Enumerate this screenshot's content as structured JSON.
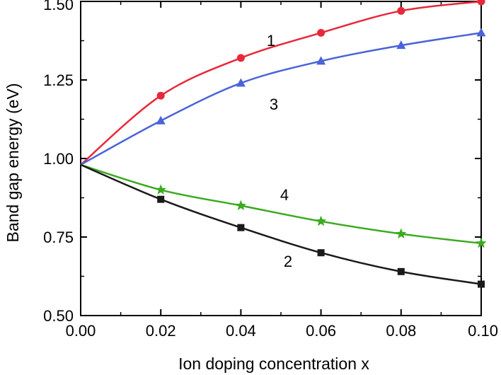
{
  "chart_data": {
    "type": "line",
    "xlabel": "Ion doping concentration x",
    "ylabel": "Band gap energy (eV)",
    "xlim": [
      0.0,
      0.1
    ],
    "ylim": [
      0.5,
      1.5
    ],
    "x_ticks": [
      "0.00",
      "0.02",
      "0.04",
      "0.06",
      "0.08",
      "0.10"
    ],
    "y_ticks": [
      "0.50",
      "0.75",
      "1.00",
      "1.25",
      "1.50"
    ],
    "x": [
      0.0,
      0.02,
      0.04,
      0.06,
      0.08,
      0.1
    ],
    "series": [
      {
        "label": "1",
        "color": "#e8283a",
        "marker": "circle",
        "values": [
          0.98,
          1.2,
          1.32,
          1.4,
          1.47,
          1.5
        ]
      },
      {
        "label": "3",
        "color": "#4a63d8",
        "marker": "triangle",
        "values": [
          0.98,
          1.12,
          1.24,
          1.31,
          1.36,
          1.4
        ]
      },
      {
        "label": "4",
        "color": "#3aaa1f",
        "marker": "star",
        "values": [
          0.98,
          0.9,
          0.85,
          0.8,
          0.76,
          0.73
        ]
      },
      {
        "label": "2",
        "color": "#1a1a1a",
        "marker": "square",
        "values": [
          0.98,
          0.87,
          0.78,
          0.7,
          0.64,
          0.6
        ]
      }
    ],
    "grid": false,
    "legend": "inline curve labels"
  }
}
